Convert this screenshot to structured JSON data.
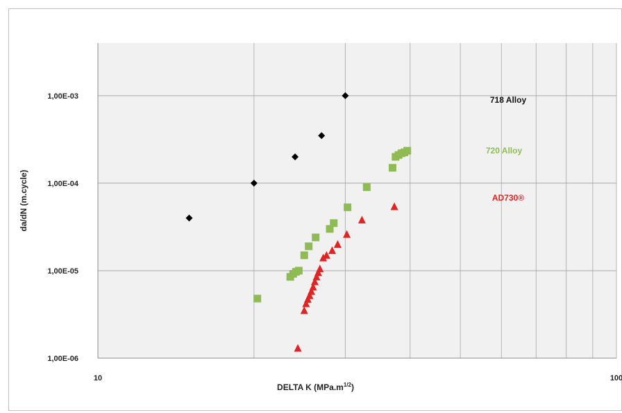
{
  "chart_data": {
    "type": "scatter",
    "xscale": "log",
    "yscale": "log",
    "xlim": [
      10,
      100
    ],
    "ylim": [
      1e-06,
      0.004
    ],
    "xlabel": "DELTA K  (MPa.m",
    "xlabel_sup": "1/2",
    "xlabel_end": ")",
    "ylabel": "da/dN  (m.cycle)",
    "x_tick_labels": [
      "10",
      "100"
    ],
    "y_tick_labels": [
      "1,00E-06",
      "1,00E-05",
      "1,00E-04",
      "1,00E-03"
    ],
    "grid": true,
    "series": [
      {
        "name": "718 Alloy",
        "color": "#000000",
        "marker": "diamond",
        "points": [
          [
            15,
            4e-05
          ],
          [
            20,
            0.0001
          ],
          [
            24,
            0.0002
          ],
          [
            27,
            0.00035
          ],
          [
            30,
            0.001
          ]
        ]
      },
      {
        "name": "720 Alloy",
        "color": "#8fbb54",
        "marker": "square",
        "points": [
          [
            20.3,
            4.8e-06
          ],
          [
            23.5,
            8.5e-06
          ],
          [
            23.8,
            9.2e-06
          ],
          [
            24.1,
            9.7e-06
          ],
          [
            24.4,
            1e-05
          ],
          [
            25,
            1.5e-05
          ],
          [
            25.5,
            1.9e-05
          ],
          [
            26.3,
            2.4e-05
          ],
          [
            28,
            3e-05
          ],
          [
            28.5,
            3.5e-05
          ],
          [
            30.3,
            5.3e-05
          ],
          [
            33,
            9e-05
          ],
          [
            37,
            0.00015
          ],
          [
            37.5,
            0.0002
          ],
          [
            38,
            0.00021
          ],
          [
            38.5,
            0.00022
          ],
          [
            39,
            0.000225
          ],
          [
            39.5,
            0.000235
          ]
        ]
      },
      {
        "name": "AD730®",
        "color": "#e02424",
        "marker": "triangle",
        "points": [
          [
            24.3,
            1.3e-06
          ],
          [
            25,
            3.5e-06
          ],
          [
            25.2,
            4.2e-06
          ],
          [
            25.4,
            4.7e-06
          ],
          [
            25.6,
            5.2e-06
          ],
          [
            25.8,
            5.8e-06
          ],
          [
            26,
            6.5e-06
          ],
          [
            26.2,
            7.5e-06
          ],
          [
            26.4,
            8.5e-06
          ],
          [
            26.6,
            9.5e-06
          ],
          [
            26.8,
            1.05e-05
          ],
          [
            27.2,
            1.4e-05
          ],
          [
            27.6,
            1.5e-05
          ],
          [
            28.3,
            1.7e-05
          ],
          [
            29,
            2e-05
          ],
          [
            30.2,
            2.6e-05
          ],
          [
            32.3,
            3.8e-05
          ],
          [
            37.3,
            5.4e-05
          ]
        ]
      }
    ]
  }
}
